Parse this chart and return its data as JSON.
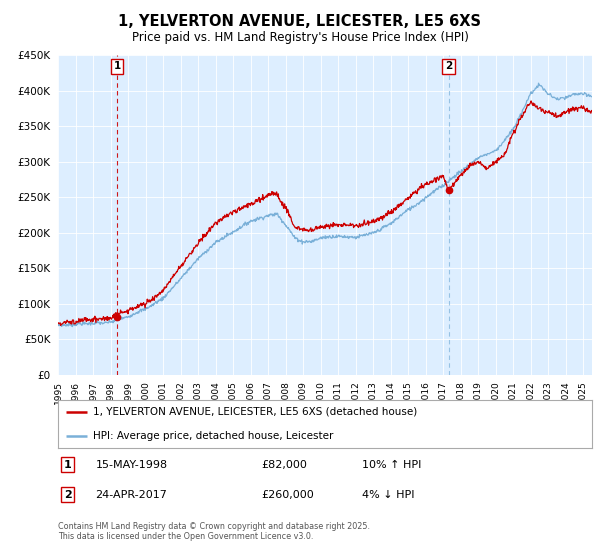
{
  "title1": "1, YELVERTON AVENUE, LEICESTER, LE5 6XS",
  "title2": "Price paid vs. HM Land Registry's House Price Index (HPI)",
  "legend_line1": "1, YELVERTON AVENUE, LEICESTER, LE5 6XS (detached house)",
  "legend_line2": "HPI: Average price, detached house, Leicester",
  "annotation1_label": "1",
  "annotation1_date": "15-MAY-1998",
  "annotation1_price": "£82,000",
  "annotation1_hpi": "10% ↑ HPI",
  "annotation2_label": "2",
  "annotation2_date": "24-APR-2017",
  "annotation2_price": "£260,000",
  "annotation2_hpi": "4% ↓ HPI",
  "footer": "Contains HM Land Registry data © Crown copyright and database right 2025.\nThis data is licensed under the Open Government Licence v3.0.",
  "sale1_year": 1998.37,
  "sale1_price": 82000,
  "sale2_year": 2017.31,
  "sale2_price": 260000,
  "hpi_color": "#7ab0d8",
  "price_color": "#cc0000",
  "vline1_color": "#cc0000",
  "vline2_color": "#7ab0d8",
  "chart_bg": "#ddeeff",
  "background_color": "#ffffff",
  "grid_color": "#ffffff",
  "ylim": [
    0,
    450000
  ],
  "xlim_start": 1995,
  "xlim_end": 2025.5
}
